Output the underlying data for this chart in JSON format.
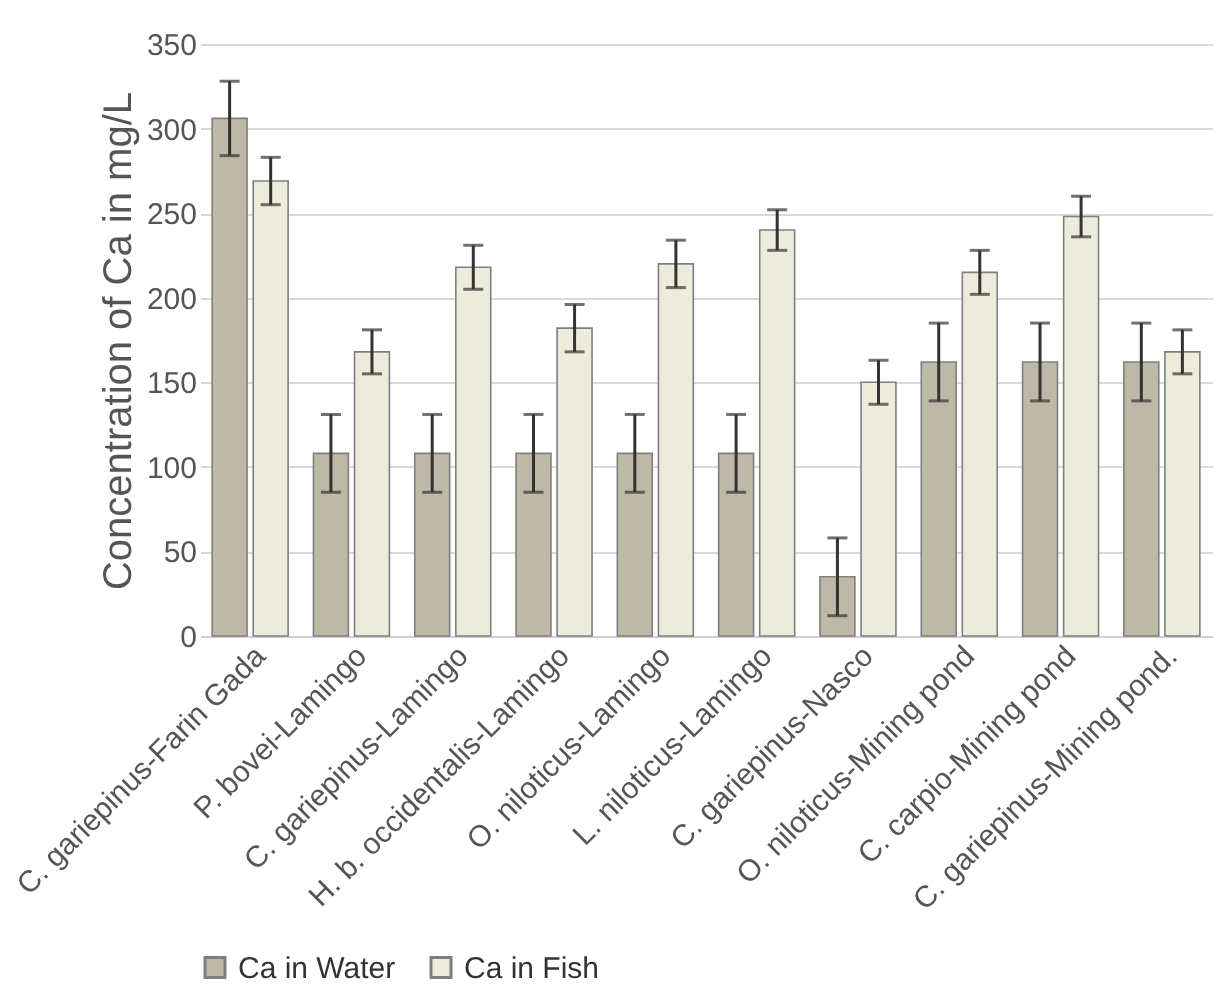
{
  "chart_data": {
    "type": "bar",
    "ylabel": "Concentration of Ca in mg/L",
    "categories": [
      "C. gariepinus-Farin Gada",
      "P. bovei-Lamingo",
      "C. gariepinus-Lamingo",
      "H. b. occidentalis-Lamingo",
      "O. niloticus-Lamingo",
      "L. niloticus-Lamingo",
      "C. gariepinus-Nasco",
      "O. niloticus-Mining pond",
      "C. carpio-Mining pond",
      "C. gariepinus-Mining pond."
    ],
    "series": [
      {
        "name": "Ca in  Water",
        "color": "#bdb9a6",
        "values": [
          306,
          108,
          108,
          108,
          108,
          108,
          35,
          162,
          162,
          162
        ],
        "errors": [
          22,
          23,
          23,
          23,
          23,
          23,
          23,
          23,
          23,
          23
        ]
      },
      {
        "name": "Ca in Fish",
        "color": "#ecebdc",
        "values": [
          269,
          168,
          218,
          182,
          220,
          240,
          150,
          215,
          248,
          168
        ],
        "errors": [
          14,
          13,
          13,
          14,
          14,
          12,
          13,
          13,
          12,
          13
        ]
      }
    ],
    "ylim": [
      0,
      350
    ],
    "yticks": [
      0,
      50,
      100,
      150,
      200,
      250,
      300,
      350
    ],
    "grid": "y",
    "legend": "bottom"
  }
}
